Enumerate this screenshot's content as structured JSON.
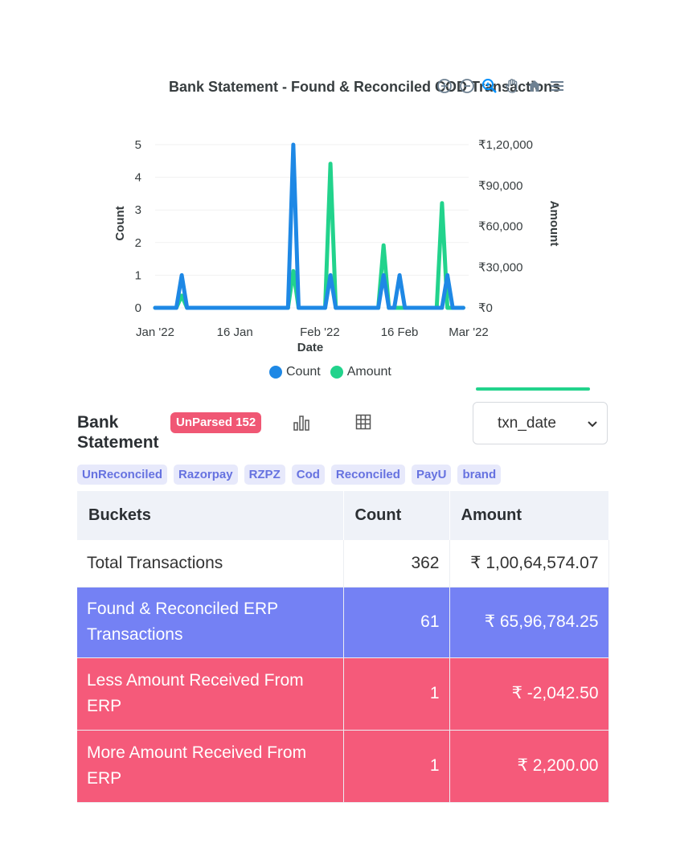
{
  "chart": {
    "title": "Bank Statement - Found & Reconciled COD Transactions",
    "toolbar": [
      "zoom-in-icon",
      "zoom-out-icon",
      "selection-zoom-icon",
      "pan-hand-icon",
      "reset-home-icon",
      "menu-icon"
    ],
    "legend": [
      {
        "label": "Count",
        "color": "#1e88e5"
      },
      {
        "label": "Amount",
        "color": "#22d38c"
      }
    ]
  },
  "chart_data": {
    "type": "line",
    "xlabel": "Date",
    "ylabel_left": "Count",
    "ylabel_right": "Amount",
    "x_ticks": [
      "Jan '22",
      "16 Jan",
      "Feb '22",
      "16 Feb",
      "Mar '22"
    ],
    "y_left_ticks": [
      "0",
      "1",
      "2",
      "3",
      "4",
      "5"
    ],
    "y_right_ticks": [
      "₹0",
      "₹30,000",
      "₹60,000",
      "₹90,000",
      "₹1,20,000"
    ],
    "ylim_left": [
      0,
      5
    ],
    "ylim_right": [
      0,
      120000
    ],
    "grid": true,
    "legend_position": "bottom",
    "series": [
      {
        "name": "Count",
        "color": "#1e88e5",
        "x": [
          "2022-01-01",
          "2022-01-05",
          "2022-01-06",
          "2022-01-07",
          "2022-01-26",
          "2022-01-27",
          "2022-01-28",
          "2022-02-02",
          "2022-02-03",
          "2022-02-04",
          "2022-02-12",
          "2022-02-13",
          "2022-02-14",
          "2022-02-15",
          "2022-02-16",
          "2022-02-17",
          "2022-02-24",
          "2022-02-25",
          "2022-02-26",
          "2022-02-28"
        ],
        "values": [
          0,
          0,
          1,
          0,
          0,
          5,
          0,
          0,
          1,
          0,
          0,
          1,
          0,
          0,
          1,
          0,
          0,
          1,
          0,
          0
        ]
      },
      {
        "name": "Amount",
        "color": "#22d38c",
        "x": [
          "2022-01-01",
          "2022-01-05",
          "2022-01-06",
          "2022-01-07",
          "2022-01-26",
          "2022-01-27",
          "2022-01-28",
          "2022-02-02",
          "2022-02-03",
          "2022-02-04",
          "2022-02-12",
          "2022-02-13",
          "2022-02-14",
          "2022-02-23",
          "2022-02-24",
          "2022-02-25",
          "2022-02-28"
        ],
        "values": [
          0,
          0,
          9000,
          0,
          0,
          27000,
          0,
          0,
          106000,
          0,
          0,
          46000,
          0,
          0,
          77000,
          0,
          0
        ]
      }
    ]
  },
  "header": {
    "title": "Bank Statement",
    "badge": "UnParsed 152",
    "select_value": "txn_date"
  },
  "tags": [
    "UnReconciled",
    "Razorpay",
    "RZPZ",
    "Cod",
    "Reconciled",
    "PayU",
    "brand"
  ],
  "table": {
    "columns": [
      "Buckets",
      "Count",
      "Amount"
    ],
    "rows": [
      {
        "bucket": "Total Transactions",
        "count": "362",
        "amount": "₹ 1,00,64,574.07"
      },
      {
        "bucket": "Found & Reconciled ERP Transactions",
        "count": "61",
        "amount": "₹ 65,96,784.25"
      },
      {
        "bucket": "Less Amount Received From ERP",
        "count": "1",
        "amount": "₹ -2,042.50"
      },
      {
        "bucket": "More Amount Received From ERP",
        "count": "1",
        "amount": "₹ 2,200.00"
      }
    ]
  },
  "colors": {
    "accent_blue": "#7481f4",
    "accent_red": "#f55a7a",
    "badge_red": "#f05774",
    "tag_bg": "#e7e9fb",
    "tag_text": "#6672e0"
  }
}
